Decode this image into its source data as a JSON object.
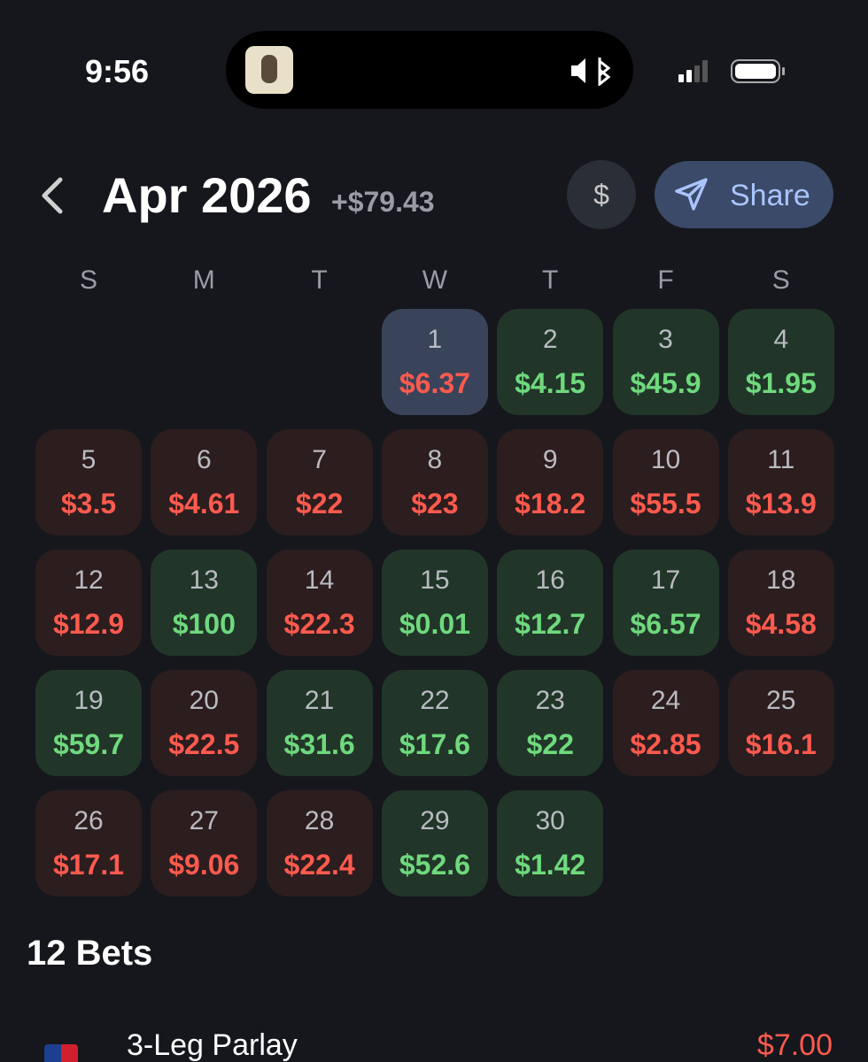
{
  "status_bar": {
    "time": "9:56"
  },
  "header": {
    "title": "Apr 2026",
    "total": "+$79.43",
    "currency_button": "$",
    "share_button": "Share"
  },
  "calendar": {
    "weekdays": [
      "S",
      "M",
      "T",
      "W",
      "T",
      "F",
      "S"
    ],
    "days": [
      null,
      null,
      null,
      {
        "day": "1",
        "amount": "$6.37",
        "tone": "loss",
        "selected": true
      },
      {
        "day": "2",
        "amount": "$4.15",
        "tone": "win"
      },
      {
        "day": "3",
        "amount": "$45.9",
        "tone": "win"
      },
      {
        "day": "4",
        "amount": "$1.95",
        "tone": "win"
      },
      {
        "day": "5",
        "amount": "$3.5",
        "tone": "loss"
      },
      {
        "day": "6",
        "amount": "$4.61",
        "tone": "loss"
      },
      {
        "day": "7",
        "amount": "$22",
        "tone": "loss"
      },
      {
        "day": "8",
        "amount": "$23",
        "tone": "loss"
      },
      {
        "day": "9",
        "amount": "$18.2",
        "tone": "loss"
      },
      {
        "day": "10",
        "amount": "$55.5",
        "tone": "loss"
      },
      {
        "day": "11",
        "amount": "$13.9",
        "tone": "loss"
      },
      {
        "day": "12",
        "amount": "$12.9",
        "tone": "loss"
      },
      {
        "day": "13",
        "amount": "$100",
        "tone": "win"
      },
      {
        "day": "14",
        "amount": "$22.3",
        "tone": "loss"
      },
      {
        "day": "15",
        "amount": "$0.01",
        "tone": "win"
      },
      {
        "day": "16",
        "amount": "$12.7",
        "tone": "win"
      },
      {
        "day": "17",
        "amount": "$6.57",
        "tone": "win"
      },
      {
        "day": "18",
        "amount": "$4.58",
        "tone": "loss"
      },
      {
        "day": "19",
        "amount": "$59.7",
        "tone": "win"
      },
      {
        "day": "20",
        "amount": "$22.5",
        "tone": "loss"
      },
      {
        "day": "21",
        "amount": "$31.6",
        "tone": "win"
      },
      {
        "day": "22",
        "amount": "$17.6",
        "tone": "win"
      },
      {
        "day": "23",
        "amount": "$22",
        "tone": "win"
      },
      {
        "day": "24",
        "amount": "$2.85",
        "tone": "loss"
      },
      {
        "day": "25",
        "amount": "$16.1",
        "tone": "loss"
      },
      {
        "day": "26",
        "amount": "$17.1",
        "tone": "loss"
      },
      {
        "day": "27",
        "amount": "$9.06",
        "tone": "loss"
      },
      {
        "day": "28",
        "amount": "$22.4",
        "tone": "loss"
      },
      {
        "day": "29",
        "amount": "$52.6",
        "tone": "win"
      },
      {
        "day": "30",
        "amount": "$1.42",
        "tone": "win"
      }
    ]
  },
  "bets": {
    "heading": "12 Bets",
    "items": [
      {
        "title": "3-Leg Parlay",
        "amount": "$7.00",
        "tone": "loss"
      }
    ]
  }
}
